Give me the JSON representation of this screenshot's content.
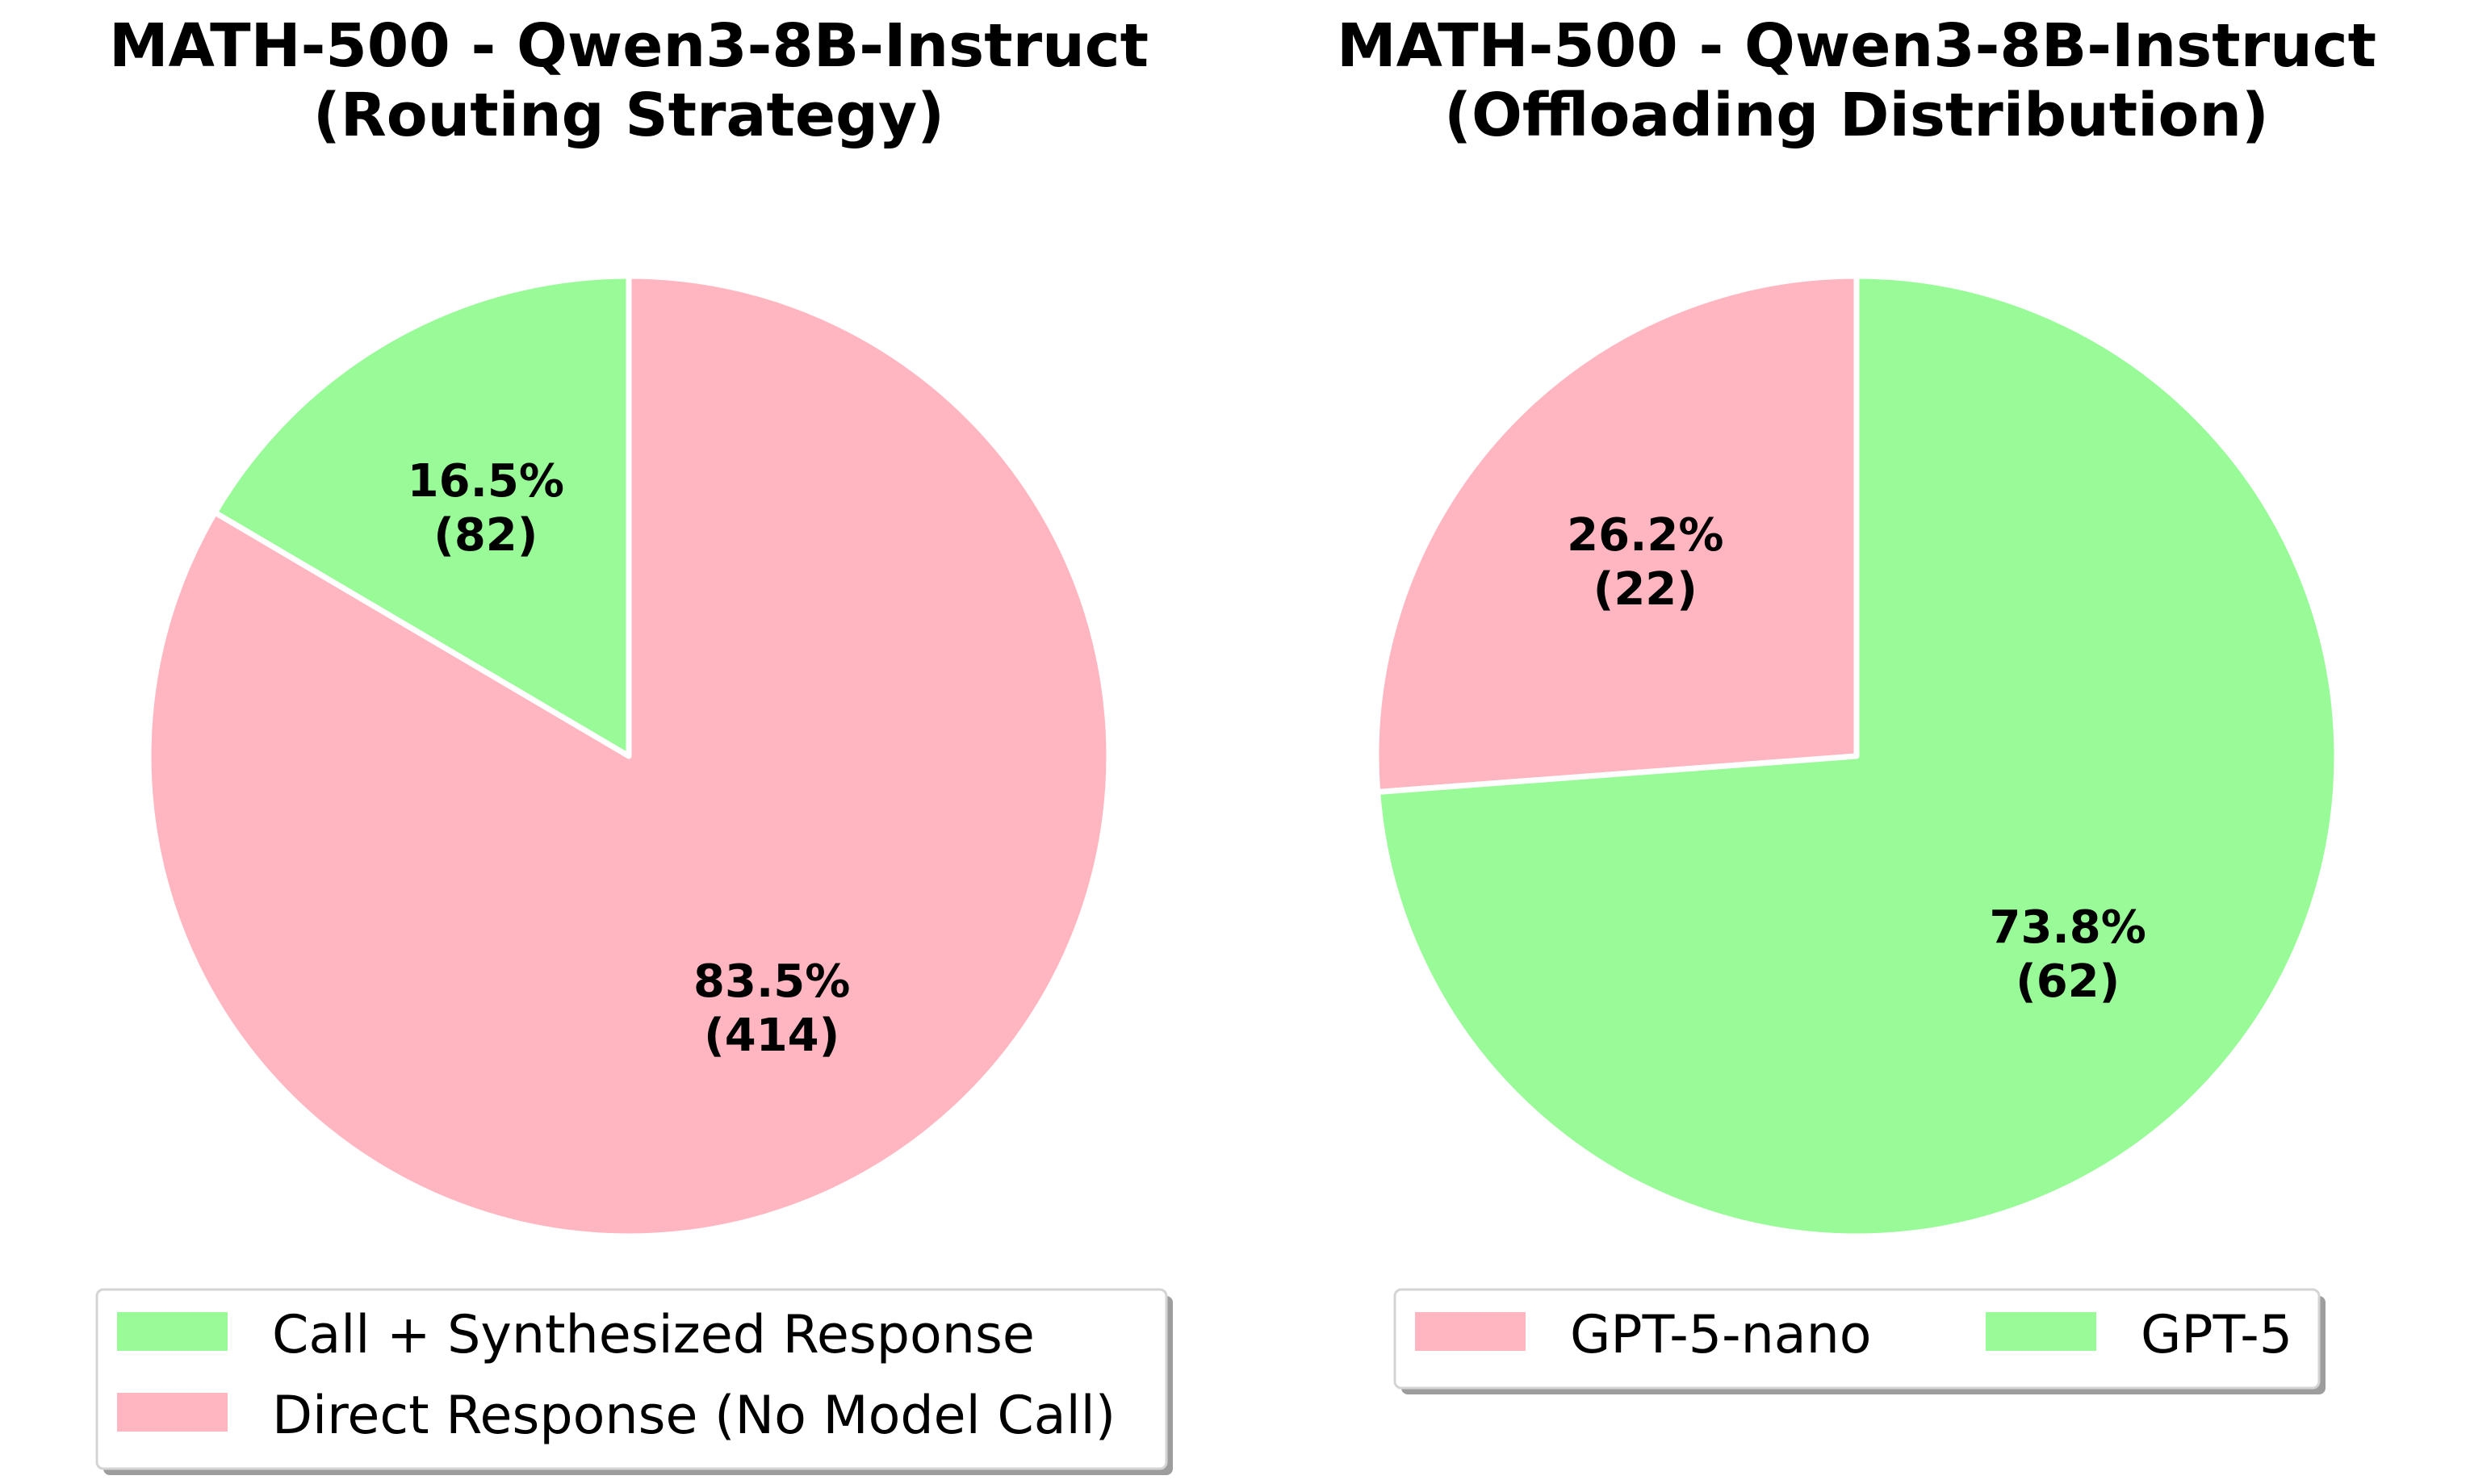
{
  "chart_data": [
    {
      "type": "pie",
      "title": "MATH-500 - Qwen3-8B-Instruct",
      "subtitle": "(Routing Strategy)",
      "slices": [
        {
          "label": "Call + Synthesized Response",
          "value": 82,
          "percent": "16.5%",
          "count_label": "(82)",
          "color": "#98fb98"
        },
        {
          "label": "Direct Response (No Model Call)",
          "value": 414,
          "percent": "83.5%",
          "count_label": "(414)",
          "color": "#ffb6c1"
        }
      ],
      "start_angle": 90,
      "direction": "counterclockwise",
      "legend_position": "bottom",
      "legend_columns": 1
    },
    {
      "type": "pie",
      "title": "MATH-500 - Qwen3-8B-Instruct",
      "subtitle": "(Offloading Distribution)",
      "slices": [
        {
          "label": "GPT-5-nano",
          "value": 22,
          "percent": "26.2%",
          "count_label": "(22)",
          "color": "#ffb6c1"
        },
        {
          "label": "GPT-5",
          "value": 62,
          "percent": "73.8%",
          "count_label": "(62)",
          "color": "#98fb98"
        }
      ],
      "start_angle": 90,
      "direction": "counterclockwise",
      "legend_position": "bottom",
      "legend_columns": 2
    }
  ]
}
